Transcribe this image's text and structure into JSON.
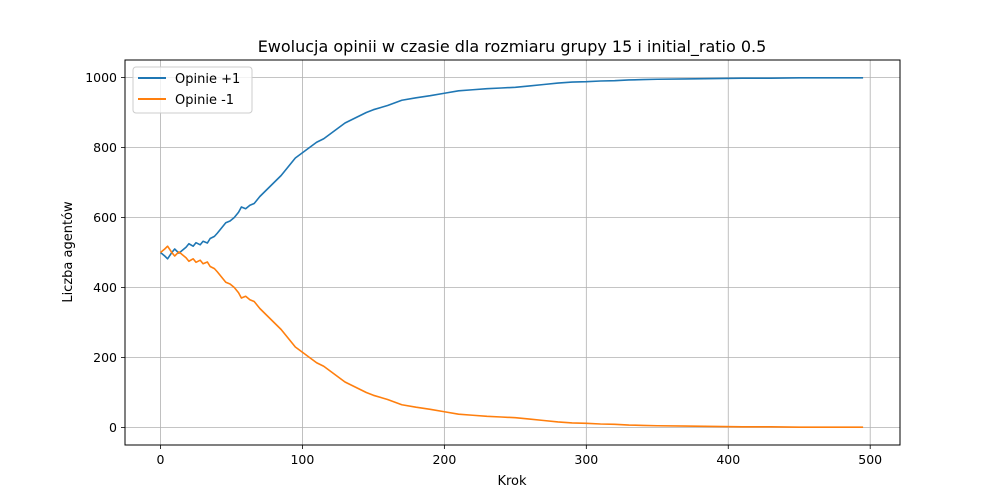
{
  "chart_data": {
    "type": "line",
    "title": "Ewolucja opinii w czasie dla rozmiaru grupy 15 i initial_ratio 0.5",
    "xlabel": "Krok",
    "ylabel": "Liczba agentów",
    "xlim": [
      -25,
      521
    ],
    "ylim": [
      -50,
      1050
    ],
    "xticks": [
      0,
      100,
      200,
      300,
      400,
      500
    ],
    "yticks": [
      0,
      200,
      400,
      600,
      800,
      1000
    ],
    "grid": true,
    "legend_position": "top-left",
    "series": [
      {
        "name": "Opinie +1",
        "color": "#1f77b4",
        "points": [
          [
            0,
            500
          ],
          [
            3,
            490
          ],
          [
            5,
            482
          ],
          [
            8,
            500
          ],
          [
            10,
            510
          ],
          [
            13,
            498
          ],
          [
            15,
            505
          ],
          [
            18,
            515
          ],
          [
            20,
            525
          ],
          [
            23,
            518
          ],
          [
            25,
            528
          ],
          [
            28,
            522
          ],
          [
            30,
            532
          ],
          [
            33,
            527
          ],
          [
            35,
            540
          ],
          [
            38,
            546
          ],
          [
            40,
            555
          ],
          [
            43,
            570
          ],
          [
            46,
            585
          ],
          [
            49,
            590
          ],
          [
            52,
            600
          ],
          [
            55,
            615
          ],
          [
            57,
            630
          ],
          [
            60,
            625
          ],
          [
            63,
            635
          ],
          [
            66,
            640
          ],
          [
            70,
            660
          ],
          [
            75,
            680
          ],
          [
            80,
            700
          ],
          [
            85,
            720
          ],
          [
            90,
            745
          ],
          [
            95,
            770
          ],
          [
            100,
            785
          ],
          [
            105,
            800
          ],
          [
            110,
            815
          ],
          [
            115,
            825
          ],
          [
            120,
            840
          ],
          [
            125,
            855
          ],
          [
            130,
            870
          ],
          [
            135,
            880
          ],
          [
            140,
            890
          ],
          [
            145,
            900
          ],
          [
            150,
            908
          ],
          [
            160,
            920
          ],
          [
            170,
            935
          ],
          [
            180,
            942
          ],
          [
            190,
            948
          ],
          [
            200,
            955
          ],
          [
            210,
            962
          ],
          [
            220,
            965
          ],
          [
            230,
            968
          ],
          [
            240,
            970
          ],
          [
            250,
            972
          ],
          [
            260,
            976
          ],
          [
            270,
            980
          ],
          [
            280,
            984
          ],
          [
            290,
            987
          ],
          [
            300,
            988
          ],
          [
            310,
            990
          ],
          [
            320,
            991
          ],
          [
            330,
            993
          ],
          [
            340,
            994
          ],
          [
            350,
            995
          ],
          [
            370,
            996
          ],
          [
            390,
            997
          ],
          [
            410,
            998
          ],
          [
            430,
            998
          ],
          [
            450,
            999
          ],
          [
            470,
            999
          ],
          [
            495,
            999
          ]
        ]
      },
      {
        "name": "Opinie -1",
        "color": "#ff7f0e",
        "points": [
          [
            0,
            500
          ],
          [
            3,
            510
          ],
          [
            5,
            518
          ],
          [
            8,
            500
          ],
          [
            10,
            490
          ],
          [
            13,
            502
          ],
          [
            15,
            495
          ],
          [
            18,
            485
          ],
          [
            20,
            475
          ],
          [
            23,
            482
          ],
          [
            25,
            472
          ],
          [
            28,
            478
          ],
          [
            30,
            468
          ],
          [
            33,
            473
          ],
          [
            35,
            460
          ],
          [
            38,
            454
          ],
          [
            40,
            445
          ],
          [
            43,
            430
          ],
          [
            46,
            415
          ],
          [
            49,
            410
          ],
          [
            52,
            400
          ],
          [
            55,
            385
          ],
          [
            57,
            370
          ],
          [
            60,
            375
          ],
          [
            63,
            365
          ],
          [
            66,
            360
          ],
          [
            70,
            340
          ],
          [
            75,
            320
          ],
          [
            80,
            300
          ],
          [
            85,
            280
          ],
          [
            90,
            255
          ],
          [
            95,
            230
          ],
          [
            100,
            215
          ],
          [
            105,
            200
          ],
          [
            110,
            185
          ],
          [
            115,
            175
          ],
          [
            120,
            160
          ],
          [
            125,
            145
          ],
          [
            130,
            130
          ],
          [
            135,
            120
          ],
          [
            140,
            110
          ],
          [
            145,
            100
          ],
          [
            150,
            92
          ],
          [
            160,
            80
          ],
          [
            170,
            65
          ],
          [
            180,
            58
          ],
          [
            190,
            52
          ],
          [
            200,
            45
          ],
          [
            210,
            38
          ],
          [
            220,
            35
          ],
          [
            230,
            32
          ],
          [
            240,
            30
          ],
          [
            250,
            28
          ],
          [
            260,
            24
          ],
          [
            270,
            20
          ],
          [
            280,
            16
          ],
          [
            290,
            13
          ],
          [
            300,
            12
          ],
          [
            310,
            10
          ],
          [
            320,
            9
          ],
          [
            330,
            7
          ],
          [
            340,
            6
          ],
          [
            350,
            5
          ],
          [
            370,
            4
          ],
          [
            390,
            3
          ],
          [
            410,
            2
          ],
          [
            430,
            2
          ],
          [
            450,
            1
          ],
          [
            470,
            1
          ],
          [
            495,
            1
          ]
        ]
      }
    ]
  }
}
